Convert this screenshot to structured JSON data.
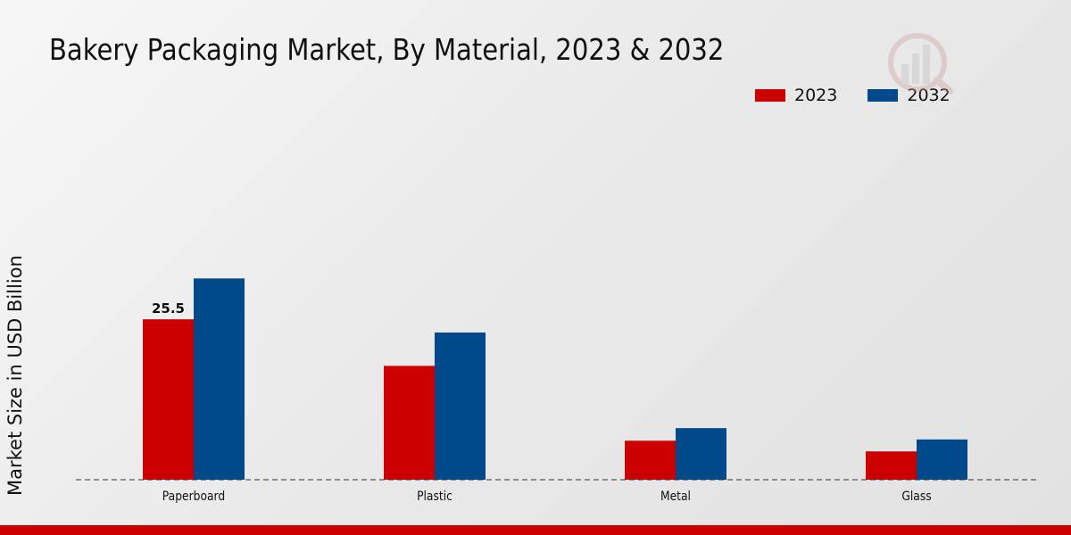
{
  "chart_data": {
    "type": "bar",
    "title": "Bakery Packaging Market, By Material, 2023 & 2032",
    "xlabel": "",
    "ylabel": "Market Size in USD Billion",
    "categories": [
      "Paperboard",
      "Plastic",
      "Metal",
      "Glass"
    ],
    "series": [
      {
        "name": "2023",
        "color": "#cc0000",
        "values": [
          25.5,
          18.1,
          6.2,
          4.5
        ]
      },
      {
        "name": "2032",
        "color": "#004a8c",
        "values": [
          32.0,
          23.4,
          8.2,
          6.4
        ]
      }
    ],
    "data_labels": [
      {
        "series": 0,
        "index": 0,
        "text": "25.5"
      }
    ],
    "ylim": [
      0,
      56.7
    ],
    "grid": false,
    "legend_position": "top-right"
  }
}
